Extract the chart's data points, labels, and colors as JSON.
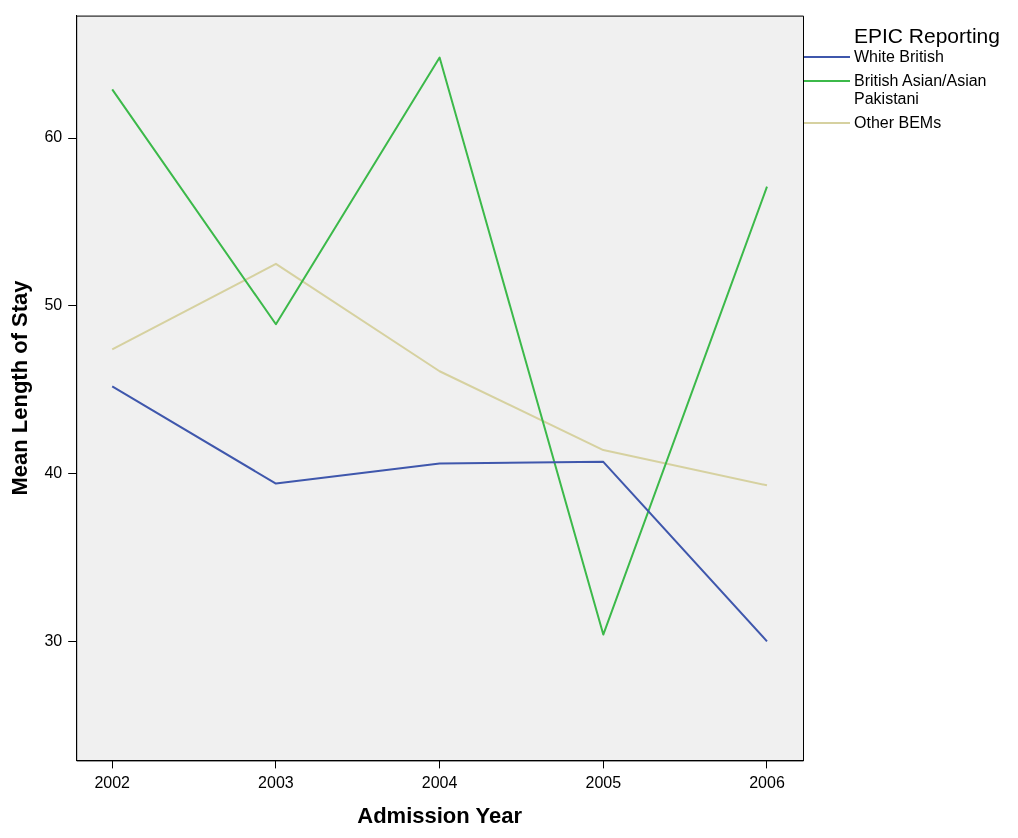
{
  "chart_data": {
    "type": "line",
    "xlabel": "Admission Year",
    "ylabel": "Mean Length of Stay",
    "legend_title": "EPIC Reporting",
    "legend": "top right",
    "grid": false,
    "marker": "none",
    "line_style": "solid",
    "x": [
      2002,
      2003,
      2004,
      2005,
      2006
    ],
    "xlim": [
      2001.78,
      2006.22
    ],
    "xticks": [
      2002,
      2003,
      2004,
      2005,
      2006
    ],
    "ylim": [
      22.9,
      67.3
    ],
    "yticks": [
      30,
      40,
      50,
      60
    ],
    "series": [
      {
        "name": "White British",
        "color": "#3f57ac",
        "values": [
          45.2,
          39.4,
          40.6,
          40.7,
          30.0
        ]
      },
      {
        "name": "British Asian/Asian Pakistani",
        "color": "#3cb94a",
        "values": [
          62.9,
          48.9,
          64.8,
          30.4,
          57.1
        ]
      },
      {
        "name": "Other BEMs",
        "color": "#d6d1a0",
        "values": [
          47.4,
          52.5,
          46.1,
          41.4,
          39.3
        ]
      }
    ]
  }
}
